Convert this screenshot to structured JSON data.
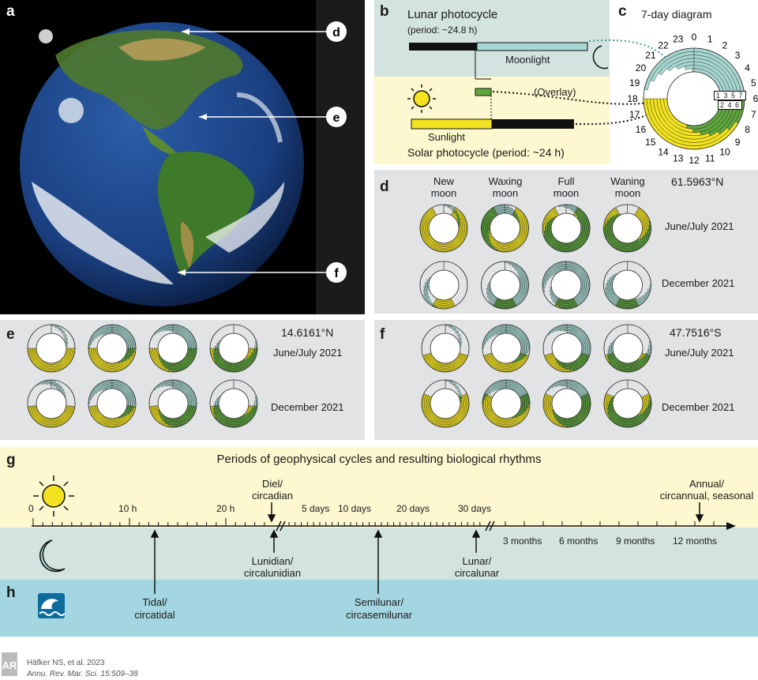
{
  "panels": {
    "a": "a",
    "b": "b",
    "c": "c",
    "d": "d",
    "e": "e",
    "f": "f",
    "g": "g",
    "h": "h"
  },
  "panel_a": {
    "markers": [
      "d",
      "e",
      "f"
    ]
  },
  "panel_b": {
    "lunar_title": "Lunar photocycle",
    "lunar_period": "(period: ~24.8 h)",
    "moonlight": "Moonlight",
    "overlay": "(Overlay)",
    "sunlight": "Sunlight",
    "solar_title": "Solar photocycle (period: ~24 h)"
  },
  "panel_c": {
    "title": "7-day diagram",
    "hours": [
      "0",
      "1",
      "2",
      "3",
      "4",
      "5",
      "6",
      "7",
      "8",
      "9",
      "10",
      "11",
      "12",
      "13",
      "14",
      "15",
      "16",
      "17",
      "18",
      "19",
      "20",
      "21",
      "22",
      "23"
    ],
    "day_labels_top": "1 3 5 7",
    "day_labels_bottom": "2 4 6"
  },
  "panel_d": {
    "latitude": "61.5963°N",
    "columns": [
      "New\nmoon",
      "Waxing\nmoon",
      "Full\nmoon",
      "Waning\nmoon"
    ],
    "row1": "June/July 2021",
    "row2": "December 2021"
  },
  "panel_e": {
    "latitude": "14.6161°N",
    "row1": "June/July 2021",
    "row2": "December 2021"
  },
  "panel_f": {
    "latitude": "47.7516°S",
    "row1": "June/July 2021",
    "row2": "December 2021"
  },
  "panel_g": {
    "title": "Periods of geophysical cycles and resulting biological rhythms",
    "ticks": [
      "0",
      "10 h",
      "20 h",
      "5 days",
      "10 days",
      "20 days",
      "30 days"
    ],
    "months": [
      "3 months",
      "6 months",
      "9 months",
      "12 months"
    ],
    "diel": "Diel/\ncircadian",
    "annual": "Annual/\ncircannual, seasonal",
    "lunidian": "Lunidian/\ncircalunidian",
    "lunar": "Lunar/\ncircalunar",
    "tidal": "Tidal/\ncircatidal",
    "semilunar": "Semilunar/\ncircasemilunar"
  },
  "credit": {
    "logo": "AR",
    "line1": "Häfker NS, et al. 2023",
    "line2": "Annu. Rev. Mar. Sci. 15:509–38"
  },
  "colors": {
    "sun_yellow": "#f2e21f",
    "moon_teal": "#a7d6d0",
    "overlay_green": "#5fa83d",
    "night": "#111111",
    "panel_gray": "#e2e3e5",
    "ocean_blue": "#0e6b9c"
  }
}
